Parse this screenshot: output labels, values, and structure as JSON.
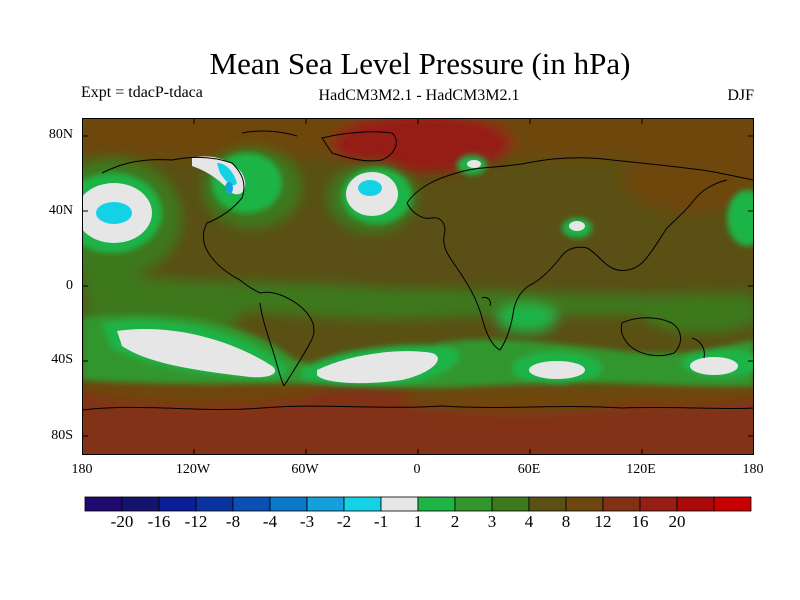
{
  "title": "Mean Sea Level Pressure (in hPa)",
  "subtitle_left": "Expt = tdacP-tdaca",
  "subtitle_center": "HadCM3M2.1 - HadCM3M2.1",
  "subtitle_right": "DJF",
  "lat_labels": [
    "80N",
    "40N",
    "0",
    "40S",
    "80S"
  ],
  "lon_labels": [
    "180",
    "120W",
    "60W",
    "0",
    "60E",
    "120E",
    "180"
  ],
  "colorbar": {
    "colors": [
      "#1e0a6e",
      "#14146e",
      "#0a1e96",
      "#0a32a0",
      "#0a50b4",
      "#0a78c8",
      "#14a0dc",
      "#14d2e6",
      "#e6e6e6",
      "#1eb446",
      "#32962d",
      "#3c781e",
      "#5a5014",
      "#6e460f",
      "#823214",
      "#961e14",
      "#aa0a0a",
      "#c80000"
    ],
    "labels": [
      "-20",
      "-16",
      "-12",
      "-8",
      "-4",
      "-3",
      "-2",
      "-1",
      "1",
      "2",
      "3",
      "4",
      "8",
      "12",
      "16",
      "20"
    ]
  }
}
